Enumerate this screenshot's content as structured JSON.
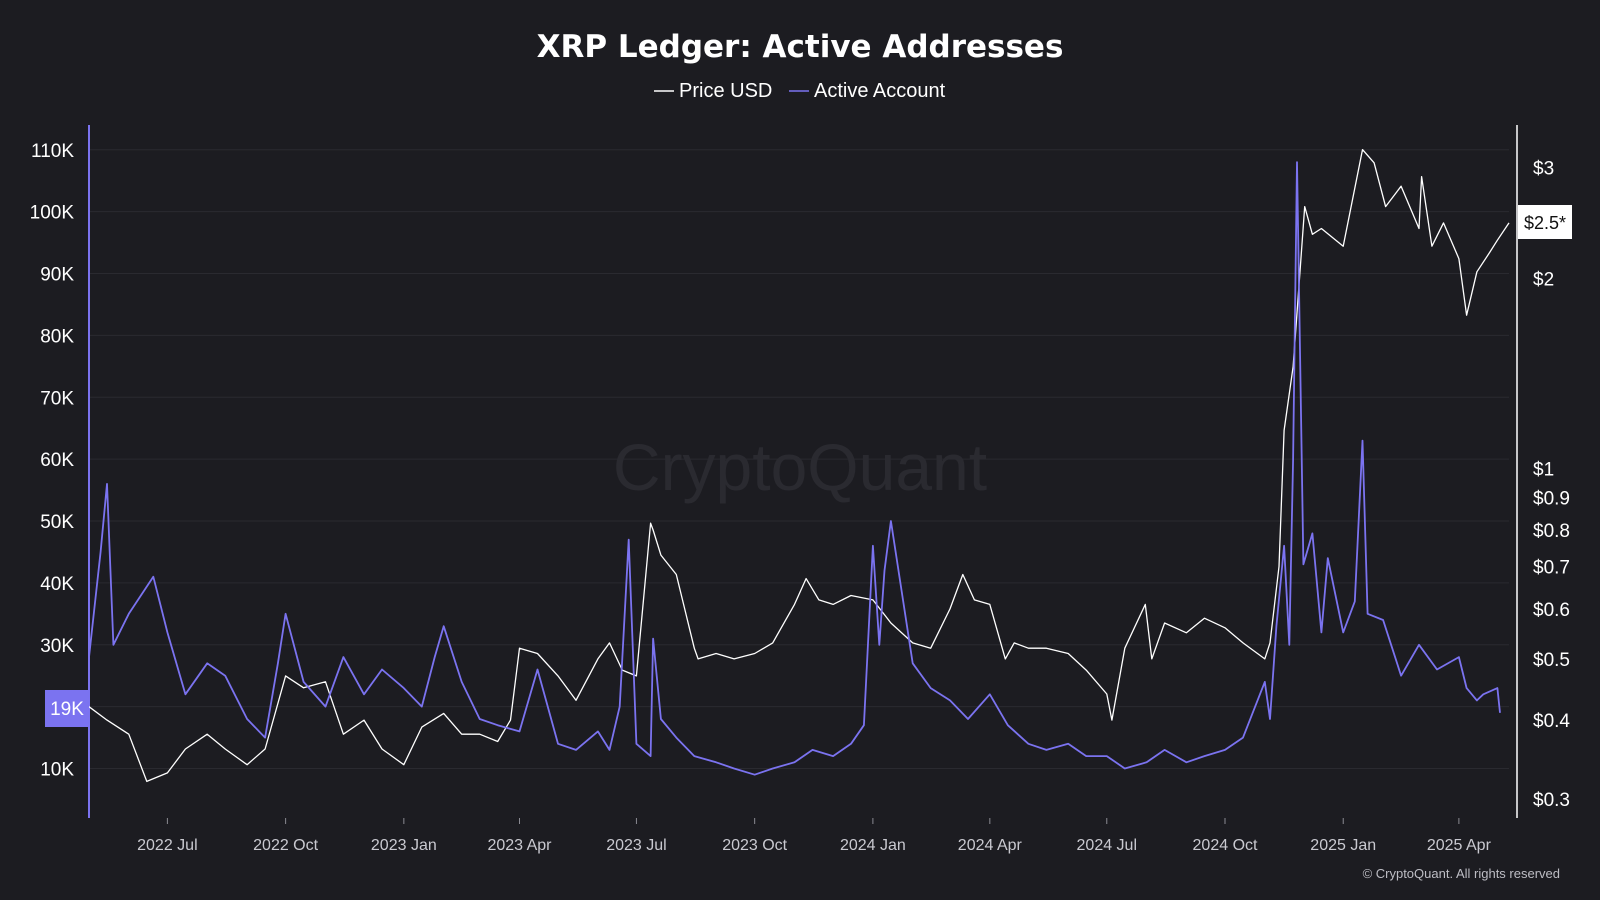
{
  "chart_data": {
    "type": "line",
    "title": "XRP Ledger: Active Addresses",
    "legend": {
      "placement": "top-center"
    },
    "colors": {
      "price": "#ffffff",
      "active": "#7b73f0",
      "background": "#1c1c21",
      "grid": "#2a2a30"
    },
    "x_ticks": [
      "2022 Jul",
      "2022 Oct",
      "2023 Jan",
      "2023 Apr",
      "2023 Jul",
      "2023 Oct",
      "2024 Jan",
      "2024 Apr",
      "2024 Jul",
      "2024 Oct",
      "2025 Jan",
      "2025 Apr"
    ],
    "x_range": [
      "2022-05-01",
      "2025-05-10"
    ],
    "left_axis": {
      "ticks": [
        10000,
        20000,
        30000,
        40000,
        50000,
        60000,
        70000,
        80000,
        90000,
        100000,
        110000
      ],
      "tick_labels": [
        "10K",
        "",
        "30K",
        "40K",
        "50K",
        "60K",
        "70K",
        "80K",
        "90K",
        "100K",
        "110K"
      ],
      "range": [
        2000,
        114000
      ],
      "current_label": "19K"
    },
    "right_axis": {
      "scale": "log",
      "ticks": [
        0.3,
        0.4,
        0.5,
        0.6,
        0.7,
        0.8,
        0.9,
        1,
        2,
        3
      ],
      "tick_labels": [
        "$0.3",
        "$0.4",
        "$0.5",
        "$0.6",
        "$0.7",
        "$0.8",
        "$0.9",
        "$1",
        "$2",
        "$3"
      ],
      "range": [
        0.28,
        3.5
      ],
      "current_label": "$2.5*"
    },
    "grid": true,
    "series": [
      {
        "name": "Price USD",
        "axis": "right",
        "x": [
          "2022-05-01",
          "2022-05-15",
          "2022-06-01",
          "2022-06-15",
          "2022-07-01",
          "2022-07-15",
          "2022-08-01",
          "2022-08-15",
          "2022-09-01",
          "2022-09-15",
          "2022-10-01",
          "2022-10-15",
          "2022-11-01",
          "2022-11-15",
          "2022-12-01",
          "2022-12-15",
          "2023-01-01",
          "2023-01-15",
          "2023-02-01",
          "2023-02-15",
          "2023-03-01",
          "2023-03-15",
          "2023-03-25",
          "2023-04-01",
          "2023-04-15",
          "2023-05-01",
          "2023-05-15",
          "2023-06-01",
          "2023-06-10",
          "2023-06-20",
          "2023-07-01",
          "2023-07-12",
          "2023-07-14",
          "2023-07-20",
          "2023-08-01",
          "2023-08-15",
          "2023-08-18",
          "2023-09-01",
          "2023-09-15",
          "2023-10-01",
          "2023-10-15",
          "2023-11-01",
          "2023-11-10",
          "2023-11-20",
          "2023-12-01",
          "2023-12-15",
          "2024-01-01",
          "2024-01-15",
          "2024-02-01",
          "2024-02-15",
          "2024-03-01",
          "2024-03-11",
          "2024-03-20",
          "2024-04-01",
          "2024-04-13",
          "2024-04-20",
          "2024-05-01",
          "2024-05-15",
          "2024-06-01",
          "2024-06-15",
          "2024-07-01",
          "2024-07-05",
          "2024-07-15",
          "2024-07-31",
          "2024-08-05",
          "2024-08-15",
          "2024-09-01",
          "2024-09-15",
          "2024-10-01",
          "2024-10-15",
          "2024-11-01",
          "2024-11-05",
          "2024-11-12",
          "2024-11-16",
          "2024-11-23",
          "2024-12-02",
          "2024-12-08",
          "2024-12-15",
          "2025-01-01",
          "2025-01-16",
          "2025-01-25",
          "2025-02-03",
          "2025-02-15",
          "2025-03-01",
          "2025-03-03",
          "2025-03-11",
          "2025-03-20",
          "2025-04-01",
          "2025-04-07",
          "2025-04-15",
          "2025-04-25",
          "2025-05-01",
          "2025-05-10"
        ],
        "values": [
          0.42,
          0.4,
          0.38,
          0.32,
          0.33,
          0.36,
          0.38,
          0.36,
          0.34,
          0.36,
          0.47,
          0.45,
          0.46,
          0.38,
          0.4,
          0.36,
          0.34,
          0.39,
          0.41,
          0.38,
          0.38,
          0.37,
          0.4,
          0.52,
          0.51,
          0.47,
          0.43,
          0.5,
          0.53,
          0.48,
          0.47,
          0.82,
          0.8,
          0.73,
          0.68,
          0.52,
          0.5,
          0.51,
          0.5,
          0.51,
          0.53,
          0.61,
          0.67,
          0.62,
          0.61,
          0.63,
          0.62,
          0.57,
          0.53,
          0.52,
          0.6,
          0.68,
          0.62,
          0.61,
          0.5,
          0.53,
          0.52,
          0.52,
          0.51,
          0.48,
          0.44,
          0.4,
          0.52,
          0.61,
          0.5,
          0.57,
          0.55,
          0.58,
          0.56,
          0.53,
          0.5,
          0.53,
          0.7,
          1.15,
          1.45,
          2.6,
          2.35,
          2.4,
          2.25,
          3.2,
          3.05,
          2.6,
          2.8,
          2.4,
          2.9,
          2.25,
          2.45,
          2.15,
          1.75,
          2.05,
          2.2,
          2.3,
          2.45
        ]
      },
      {
        "name": "Active Account",
        "axis": "left",
        "x": [
          "2022-05-01",
          "2022-05-10",
          "2022-05-15",
          "2022-05-20",
          "2022-06-01",
          "2022-06-20",
          "2022-07-01",
          "2022-07-15",
          "2022-08-01",
          "2022-08-15",
          "2022-09-01",
          "2022-09-15",
          "2022-09-25",
          "2022-10-01",
          "2022-10-15",
          "2022-11-01",
          "2022-11-15",
          "2022-12-01",
          "2022-12-15",
          "2023-01-01",
          "2023-01-15",
          "2023-01-25",
          "2023-02-01",
          "2023-02-15",
          "2023-03-01",
          "2023-03-15",
          "2023-04-01",
          "2023-04-15",
          "2023-05-01",
          "2023-05-15",
          "2023-06-01",
          "2023-06-10",
          "2023-06-18",
          "2023-06-25",
          "2023-07-01",
          "2023-07-12",
          "2023-07-14",
          "2023-07-20",
          "2023-08-01",
          "2023-08-15",
          "2023-09-01",
          "2023-09-15",
          "2023-10-01",
          "2023-10-15",
          "2023-11-01",
          "2023-11-15",
          "2023-12-01",
          "2023-12-15",
          "2023-12-25",
          "2024-01-01",
          "2024-01-06",
          "2024-01-10",
          "2024-01-15",
          "2024-02-01",
          "2024-02-15",
          "2024-03-01",
          "2024-03-15",
          "2024-04-01",
          "2024-04-15",
          "2024-05-01",
          "2024-05-15",
          "2024-06-01",
          "2024-06-15",
          "2024-07-01",
          "2024-07-15",
          "2024-08-01",
          "2024-08-15",
          "2024-09-01",
          "2024-09-15",
          "2024-10-01",
          "2024-10-15",
          "2024-11-01",
          "2024-11-05",
          "2024-11-10",
          "2024-11-16",
          "2024-11-20",
          "2024-11-23",
          "2024-11-26",
          "2024-12-01",
          "2024-12-08",
          "2024-12-15",
          "2024-12-20",
          "2025-01-01",
          "2025-01-10",
          "2025-01-16",
          "2025-01-20",
          "2025-02-01",
          "2025-02-15",
          "2025-03-01",
          "2025-03-15",
          "2025-04-01",
          "2025-04-07",
          "2025-04-15",
          "2025-04-20",
          "2025-05-01",
          "2025-05-03"
        ],
        "values": [
          28000,
          45000,
          56000,
          30000,
          35000,
          41000,
          32000,
          22000,
          27000,
          25000,
          18000,
          15000,
          27000,
          35000,
          24000,
          20000,
          28000,
          22000,
          26000,
          23000,
          20000,
          28000,
          33000,
          24000,
          18000,
          17000,
          16000,
          26000,
          14000,
          13000,
          16000,
          13000,
          20000,
          47000,
          14000,
          12000,
          31000,
          18000,
          15000,
          12000,
          11000,
          10000,
          9000,
          10000,
          11000,
          13000,
          12000,
          14000,
          17000,
          46000,
          30000,
          42000,
          50000,
          27000,
          23000,
          21000,
          18000,
          22000,
          17000,
          14000,
          13000,
          14000,
          12000,
          12000,
          10000,
          11000,
          13000,
          11000,
          12000,
          13000,
          15000,
          24000,
          18000,
          33000,
          46000,
          30000,
          60000,
          108000,
          43000,
          48000,
          32000,
          44000,
          32000,
          37000,
          63000,
          35000,
          34000,
          25000,
          30000,
          26000,
          28000,
          23000,
          21000,
          22000,
          23000,
          19000
        ]
      }
    ]
  },
  "footer": {
    "copyright": "© CryptoQuant. All rights reserved",
    "watermark": "CryptoQuant"
  }
}
